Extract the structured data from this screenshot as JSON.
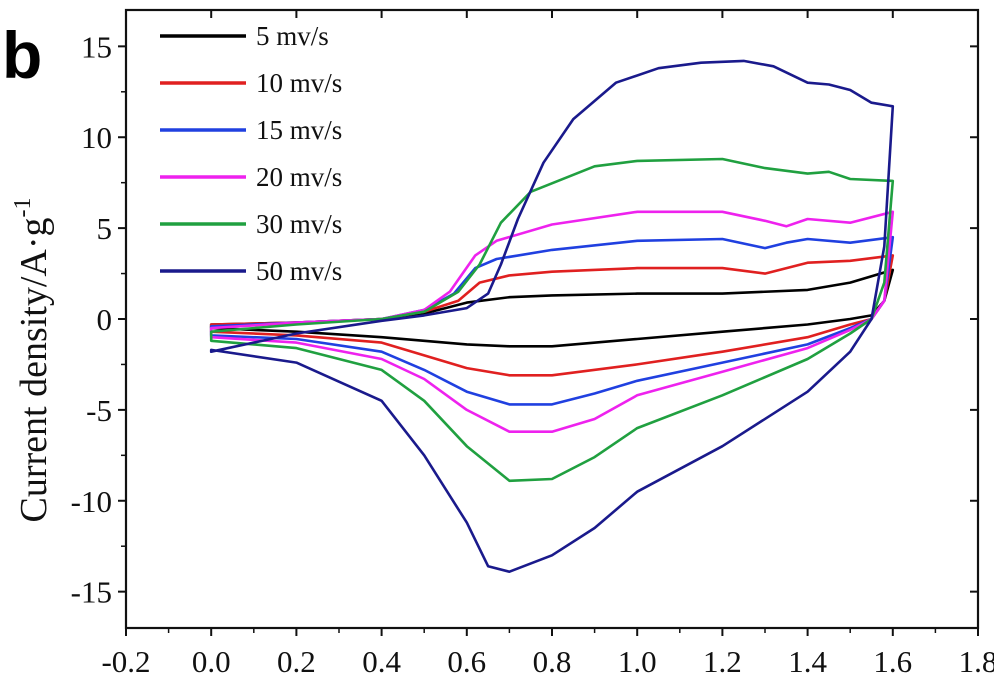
{
  "figure": {
    "panel_label": "b"
  },
  "chart_data": {
    "type": "line",
    "title": "",
    "xlabel": "",
    "ylabel": "Current density/A·g",
    "ylabel_superscript": "-1",
    "xlim": [
      -0.2,
      1.8
    ],
    "ylim": [
      -17,
      17
    ],
    "x_ticks": [
      -0.2,
      0.0,
      0.2,
      0.4,
      0.6,
      0.8,
      1.0,
      1.2,
      1.4,
      1.6,
      1.8
    ],
    "x_tick_labels": [
      "-0.2",
      "0.0",
      "0.2",
      "0.4",
      "0.6",
      "0.8",
      "1.0",
      "1.2",
      "1.4",
      "1.6",
      "1.8"
    ],
    "y_ticks": [
      -15,
      -10,
      -5,
      0,
      5,
      10,
      15
    ],
    "y_tick_labels": [
      "-15",
      "-10",
      "-5",
      "0",
      "5",
      "10",
      "15"
    ],
    "grid": false,
    "legend": "top-left",
    "series": [
      {
        "name": "5 mv/s",
        "color": "#000000",
        "anodic": [
          [
            0.0,
            -0.3
          ],
          [
            0.2,
            -0.2
          ],
          [
            0.4,
            0.0
          ],
          [
            0.5,
            0.3
          ],
          [
            0.55,
            0.6
          ],
          [
            0.6,
            0.9
          ],
          [
            0.7,
            1.2
          ],
          [
            0.8,
            1.3
          ],
          [
            1.0,
            1.4
          ],
          [
            1.2,
            1.4
          ],
          [
            1.4,
            1.6
          ],
          [
            1.5,
            2.0
          ],
          [
            1.6,
            2.7
          ]
        ],
        "cathodic": [
          [
            1.6,
            2.7
          ],
          [
            1.58,
            1.0
          ],
          [
            1.55,
            0.2
          ],
          [
            1.5,
            0.0
          ],
          [
            1.4,
            -0.3
          ],
          [
            1.2,
            -0.7
          ],
          [
            1.0,
            -1.1
          ],
          [
            0.8,
            -1.5
          ],
          [
            0.7,
            -1.5
          ],
          [
            0.6,
            -1.4
          ],
          [
            0.4,
            -1.0
          ],
          [
            0.2,
            -0.7
          ],
          [
            0.0,
            -0.5
          ]
        ]
      },
      {
        "name": "10 mv/s",
        "color": "#e02020",
        "anodic": [
          [
            0.0,
            -0.3
          ],
          [
            0.2,
            -0.2
          ],
          [
            0.4,
            0.0
          ],
          [
            0.5,
            0.4
          ],
          [
            0.58,
            1.0
          ],
          [
            0.63,
            2.0
          ],
          [
            0.7,
            2.4
          ],
          [
            0.8,
            2.6
          ],
          [
            1.0,
            2.8
          ],
          [
            1.2,
            2.8
          ],
          [
            1.3,
            2.5
          ],
          [
            1.4,
            3.1
          ],
          [
            1.5,
            3.2
          ],
          [
            1.6,
            3.5
          ]
        ],
        "cathodic": [
          [
            1.6,
            3.5
          ],
          [
            1.58,
            1.0
          ],
          [
            1.55,
            0.0
          ],
          [
            1.5,
            -0.3
          ],
          [
            1.4,
            -1.0
          ],
          [
            1.2,
            -1.8
          ],
          [
            1.0,
            -2.5
          ],
          [
            0.8,
            -3.1
          ],
          [
            0.7,
            -3.1
          ],
          [
            0.6,
            -2.7
          ],
          [
            0.5,
            -2.0
          ],
          [
            0.4,
            -1.3
          ],
          [
            0.2,
            -0.9
          ],
          [
            0.0,
            -0.7
          ]
        ]
      },
      {
        "name": "15 mv/s",
        "color": "#2040e0",
        "anodic": [
          [
            0.0,
            -0.4
          ],
          [
            0.2,
            -0.2
          ],
          [
            0.4,
            0.0
          ],
          [
            0.5,
            0.5
          ],
          [
            0.57,
            1.4
          ],
          [
            0.62,
            2.8
          ],
          [
            0.67,
            3.3
          ],
          [
            0.8,
            3.8
          ],
          [
            1.0,
            4.3
          ],
          [
            1.2,
            4.4
          ],
          [
            1.3,
            3.9
          ],
          [
            1.35,
            4.2
          ],
          [
            1.4,
            4.4
          ],
          [
            1.5,
            4.2
          ],
          [
            1.6,
            4.5
          ]
        ],
        "cathodic": [
          [
            1.6,
            4.5
          ],
          [
            1.58,
            1.0
          ],
          [
            1.55,
            0.0
          ],
          [
            1.5,
            -0.5
          ],
          [
            1.4,
            -1.4
          ],
          [
            1.2,
            -2.4
          ],
          [
            1.0,
            -3.4
          ],
          [
            0.9,
            -4.1
          ],
          [
            0.8,
            -4.7
          ],
          [
            0.7,
            -4.7
          ],
          [
            0.6,
            -4.0
          ],
          [
            0.5,
            -2.8
          ],
          [
            0.4,
            -1.8
          ],
          [
            0.2,
            -1.1
          ],
          [
            0.0,
            -0.9
          ]
        ]
      },
      {
        "name": "20 mv/s",
        "color": "#ee22ee",
        "anodic": [
          [
            0.0,
            -0.5
          ],
          [
            0.2,
            -0.2
          ],
          [
            0.4,
            0.0
          ],
          [
            0.5,
            0.5
          ],
          [
            0.56,
            1.5
          ],
          [
            0.62,
            3.5
          ],
          [
            0.67,
            4.3
          ],
          [
            0.8,
            5.2
          ],
          [
            1.0,
            5.9
          ],
          [
            1.2,
            5.9
          ],
          [
            1.3,
            5.4
          ],
          [
            1.35,
            5.1
          ],
          [
            1.4,
            5.5
          ],
          [
            1.5,
            5.3
          ],
          [
            1.6,
            5.9
          ]
        ],
        "cathodic": [
          [
            1.6,
            5.9
          ],
          [
            1.58,
            1.0
          ],
          [
            1.55,
            0.0
          ],
          [
            1.5,
            -0.6
          ],
          [
            1.4,
            -1.6
          ],
          [
            1.2,
            -2.9
          ],
          [
            1.0,
            -4.2
          ],
          [
            0.9,
            -5.5
          ],
          [
            0.8,
            -6.2
          ],
          [
            0.7,
            -6.2
          ],
          [
            0.6,
            -5.0
          ],
          [
            0.5,
            -3.3
          ],
          [
            0.4,
            -2.2
          ],
          [
            0.2,
            -1.3
          ],
          [
            0.0,
            -1.0
          ]
        ]
      },
      {
        "name": "30 mv/s",
        "color": "#20a040",
        "anodic": [
          [
            0.0,
            -0.7
          ],
          [
            0.2,
            -0.3
          ],
          [
            0.4,
            0.0
          ],
          [
            0.5,
            0.4
          ],
          [
            0.58,
            1.5
          ],
          [
            0.63,
            3.0
          ],
          [
            0.68,
            5.3
          ],
          [
            0.75,
            7.0
          ],
          [
            0.9,
            8.4
          ],
          [
            1.0,
            8.7
          ],
          [
            1.2,
            8.8
          ],
          [
            1.3,
            8.3
          ],
          [
            1.4,
            8.0
          ],
          [
            1.45,
            8.1
          ],
          [
            1.5,
            7.7
          ],
          [
            1.6,
            7.6
          ]
        ],
        "cathodic": [
          [
            1.6,
            7.6
          ],
          [
            1.58,
            2.0
          ],
          [
            1.55,
            0.0
          ],
          [
            1.5,
            -0.8
          ],
          [
            1.4,
            -2.2
          ],
          [
            1.2,
            -4.2
          ],
          [
            1.0,
            -6.0
          ],
          [
            0.9,
            -7.6
          ],
          [
            0.8,
            -8.8
          ],
          [
            0.7,
            -8.9
          ],
          [
            0.6,
            -7.0
          ],
          [
            0.5,
            -4.5
          ],
          [
            0.4,
            -2.8
          ],
          [
            0.2,
            -1.6
          ],
          [
            0.0,
            -1.2
          ]
        ]
      },
      {
        "name": "50 mv/s",
        "color": "#1a1a8c",
        "anodic": [
          [
            0.0,
            -1.8
          ],
          [
            0.2,
            -0.8
          ],
          [
            0.4,
            -0.1
          ],
          [
            0.5,
            0.2
          ],
          [
            0.6,
            0.6
          ],
          [
            0.65,
            1.4
          ],
          [
            0.68,
            3.0
          ],
          [
            0.72,
            5.5
          ],
          [
            0.78,
            8.6
          ],
          [
            0.85,
            11.0
          ],
          [
            0.95,
            13.0
          ],
          [
            1.05,
            13.8
          ],
          [
            1.15,
            14.1
          ],
          [
            1.25,
            14.2
          ],
          [
            1.32,
            13.9
          ],
          [
            1.4,
            13.0
          ],
          [
            1.45,
            12.9
          ],
          [
            1.5,
            12.6
          ],
          [
            1.55,
            11.9
          ],
          [
            1.6,
            11.7
          ]
        ],
        "cathodic": [
          [
            1.6,
            11.7
          ],
          [
            1.58,
            4.0
          ],
          [
            1.55,
            0.0
          ],
          [
            1.5,
            -1.8
          ],
          [
            1.4,
            -4.0
          ],
          [
            1.2,
            -7.0
          ],
          [
            1.0,
            -9.5
          ],
          [
            0.9,
            -11.5
          ],
          [
            0.8,
            -13.0
          ],
          [
            0.7,
            -13.9
          ],
          [
            0.65,
            -13.6
          ],
          [
            0.6,
            -11.2
          ],
          [
            0.5,
            -7.5
          ],
          [
            0.4,
            -4.5
          ],
          [
            0.2,
            -2.4
          ],
          [
            0.0,
            -1.7
          ]
        ]
      }
    ]
  }
}
